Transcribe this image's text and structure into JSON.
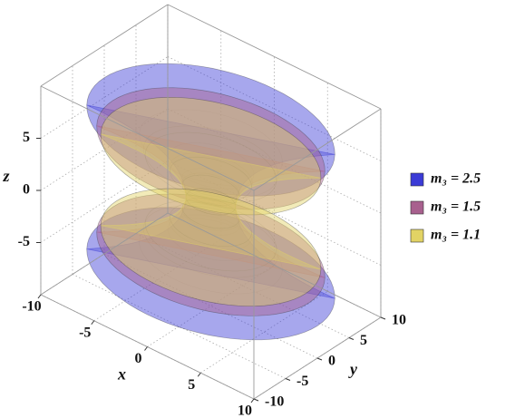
{
  "chart_data": {
    "type": "surface3d",
    "xlabel": "x",
    "ylabel": "y",
    "zlabel": "z",
    "xlim": [
      -10,
      10
    ],
    "ylim": [
      -10,
      10
    ],
    "zlim": [
      -10,
      10
    ],
    "xticks": [
      -10,
      -5,
      0,
      5,
      10
    ],
    "yticks": [
      -10,
      -5,
      0,
      5,
      10
    ],
    "zticks": [
      -5,
      0,
      5
    ],
    "grid": true,
    "legend": "right",
    "series": [
      {
        "name": "m₃ = 2.5",
        "value": 2.5,
        "color": "#3b3bd6"
      },
      {
        "name": "m₃ = 1.5",
        "value": 1.5,
        "color": "#a8608e"
      },
      {
        "name": "m₃ = 1.1",
        "value": 1.1,
        "color": "#e2d364"
      }
    ]
  }
}
